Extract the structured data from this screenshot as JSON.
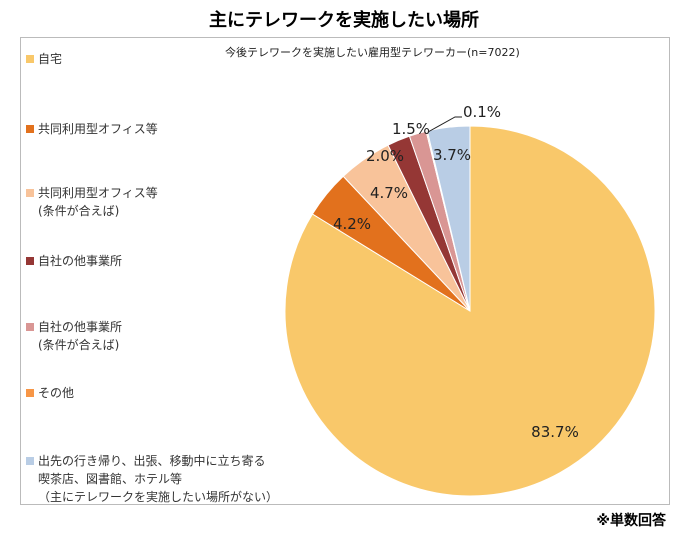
{
  "chart_data": {
    "type": "pie",
    "title": "主にテレワークを実施したい場所",
    "subtitle": "今後テレワークを実施したい雇用型テレワーカー(n=7022)",
    "footnote": "※単数回答",
    "legend_position": "left",
    "slices": [
      {
        "name": "自宅",
        "value": 83.7,
        "label": "83.7%",
        "color": "#F9C86A"
      },
      {
        "name": "共同利用型オフィス等",
        "value": 4.2,
        "label": "4.2%",
        "color": "#E2711D"
      },
      {
        "name": "共同利用型オフィス等\n(条件が合えば)",
        "value": 4.7,
        "label": "4.7%",
        "color": "#F8C39A"
      },
      {
        "name": "自社の他事業所",
        "value": 2.0,
        "label": "2.0%",
        "color": "#953735"
      },
      {
        "name": "自社の他事業所\n(条件が合えば)",
        "value": 1.5,
        "label": "1.5%",
        "color": "#D99694"
      },
      {
        "name": "その他",
        "value": 0.1,
        "label": "0.1%",
        "color": "#F79646"
      },
      {
        "name": "出先の行き帰り、出張、移動中に立ち寄る\n喫茶店、図書館、ホテル等\n（主にテレワークを実施したい場所がない）",
        "value": 3.7,
        "label": "3.7%",
        "color": "#B9CDE5"
      }
    ]
  }
}
